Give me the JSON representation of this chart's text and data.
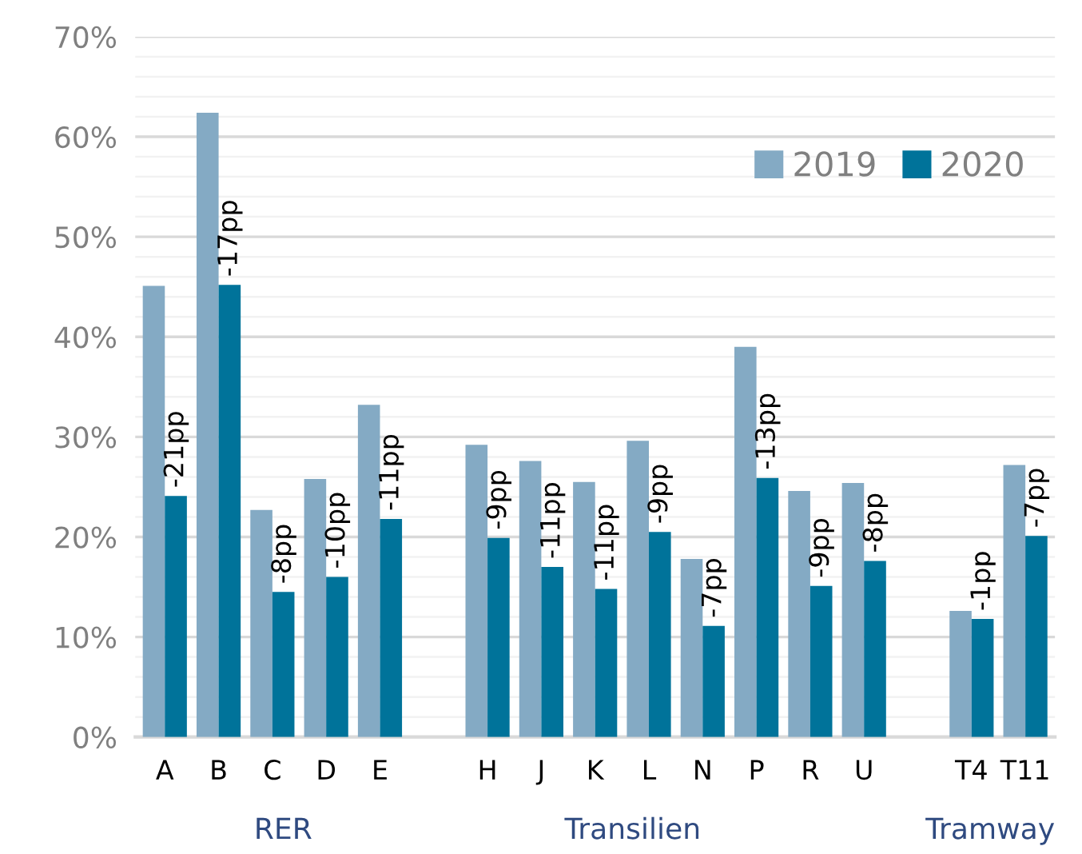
{
  "chart_data": {
    "type": "bar",
    "categories": [
      "A",
      "B",
      "C",
      "D",
      "E",
      null,
      "H",
      "J",
      "K",
      "L",
      "N",
      "P",
      "R",
      "U",
      null,
      "T4",
      "T11"
    ],
    "series": [
      {
        "name": "2019",
        "color": "#84aac4",
        "values": [
          45.1,
          62.4,
          22.7,
          25.8,
          33.2,
          null,
          29.2,
          27.6,
          25.5,
          29.6,
          17.8,
          39.0,
          24.6,
          25.4,
          null,
          12.6,
          27.2
        ]
      },
      {
        "name": "2020",
        "color": "#00739a",
        "values": [
          24.1,
          45.2,
          14.5,
          16.0,
          21.8,
          null,
          19.9,
          17.0,
          14.8,
          20.5,
          11.1,
          25.9,
          15.1,
          17.6,
          null,
          11.8,
          20.1
        ]
      }
    ],
    "annotations": [
      "RER",
      "Transilien",
      "Tramway",
      {
        "text": "-21pp",
        "x": "A",
        "y": 24.1
      },
      {
        "text": "-17pp",
        "x": "B",
        "y": 45.2
      },
      {
        "text": "-8pp",
        "x": "C",
        "y": 14.5
      },
      {
        "text": "-10pp",
        "x": "D",
        "y": 16.0
      },
      {
        "text": "-11pp",
        "x": "E",
        "y": 21.8
      },
      {
        "text": "-9pp",
        "x": "H",
        "y": 19.9
      },
      {
        "text": "-11pp",
        "x": "J",
        "y": 17.0
      },
      {
        "text": "-11pp",
        "x": "K",
        "y": 14.8
      },
      {
        "text": "-9pp",
        "x": "L",
        "y": 20.5
      },
      {
        "text": "-7pp",
        "x": "N",
        "y": 11.1
      },
      {
        "text": "-13pp",
        "x": "P",
        "y": 25.9
      },
      {
        "text": "-9pp",
        "x": "R",
        "y": 15.1
      },
      {
        "text": "-8pp",
        "x": "U",
        "y": 17.6
      },
      {
        "text": "-1pp",
        "x": "T4",
        "y": 11.8
      },
      {
        "text": "-7pp",
        "x": "T11",
        "y": 20.1
      }
    ],
    "ylim": [
      0,
      70
    ],
    "yticks": [
      {
        "value": 0,
        "label": "0%"
      },
      {
        "value": 2,
        "label": null
      },
      {
        "value": 4,
        "label": null
      },
      {
        "value": 6,
        "label": null
      },
      {
        "value": 8,
        "label": null
      },
      {
        "value": 10,
        "label": "10%"
      },
      {
        "value": 12,
        "label": null
      },
      {
        "value": 14,
        "label": null
      },
      {
        "value": 16,
        "label": null
      },
      {
        "value": 18,
        "label": null
      },
      {
        "value": 20,
        "label": "20%"
      },
      {
        "value": 22,
        "label": null
      },
      {
        "value": 24,
        "label": null
      },
      {
        "value": 26,
        "label": null
      },
      {
        "value": 28,
        "label": null
      },
      {
        "value": 30,
        "label": "30%"
      },
      {
        "value": 32,
        "label": null
      },
      {
        "value": 34,
        "label": null
      },
      {
        "value": 36,
        "label": null
      },
      {
        "value": 38,
        "label": null
      },
      {
        "value": 40,
        "label": "40%"
      },
      {
        "value": 42,
        "label": null
      },
      {
        "value": 44,
        "label": null
      },
      {
        "value": 46,
        "label": null
      },
      {
        "value": 48,
        "label": null
      },
      {
        "value": 50,
        "label": "50%"
      },
      {
        "value": 52,
        "label": null
      },
      {
        "value": 54,
        "label": null
      },
      {
        "value": 56,
        "label": null
      },
      {
        "value": 58,
        "label": null
      },
      {
        "value": 60,
        "label": "60%"
      },
      {
        "value": 62,
        "label": null
      },
      {
        "value": 64,
        "label": null
      },
      {
        "value": 66,
        "label": null
      },
      {
        "value": 68,
        "label": null
      },
      {
        "value": 70,
        "label": "70%"
      }
    ],
    "grid": "y",
    "legend": "top right"
  }
}
